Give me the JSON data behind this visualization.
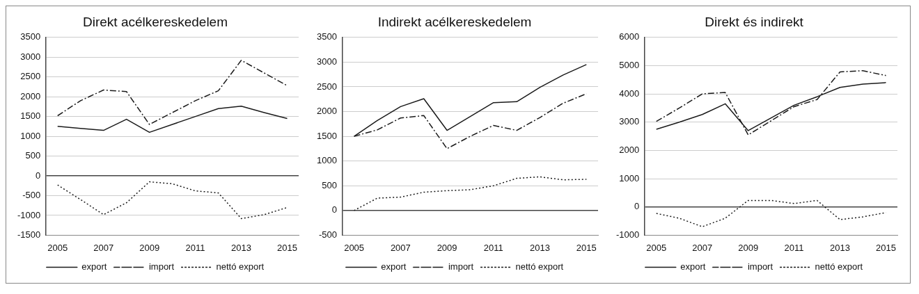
{
  "chart_data": [
    {
      "type": "line",
      "title": "Direkt acélkereskedelem",
      "categories": [
        "2005",
        null,
        "2007",
        null,
        "2009",
        null,
        "2011",
        null,
        "2013",
        null,
        "2015"
      ],
      "ylim": [
        -1500,
        3500
      ],
      "yticks": [
        -1500,
        -1000,
        -500,
        0,
        500,
        1000,
        1500,
        2000,
        2500,
        3000,
        3500
      ],
      "grid": "y",
      "legend": "bottom",
      "marker": "none",
      "series": [
        {
          "name": "export",
          "color": "#1a1a1a",
          "line_style": "solid",
          "values": [
            1250,
            1200,
            1150,
            1430,
            1100,
            1300,
            1500,
            1700,
            1760,
            1600,
            1450
          ]
        },
        {
          "name": "import",
          "color": "#1a1a1a",
          "line_style": "dashdot",
          "values": [
            1520,
            1900,
            2170,
            2130,
            1300,
            1600,
            1900,
            2150,
            2920,
            2600,
            2280
          ]
        },
        {
          "name": "nettó export",
          "color": "#1a1a1a",
          "line_style": "dotted",
          "values": [
            -230,
            -600,
            -980,
            -680,
            -150,
            -200,
            -380,
            -430,
            -1080,
            -980,
            -800
          ]
        }
      ]
    },
    {
      "type": "line",
      "title": "Indirekt acélkereskedelem",
      "categories": [
        "2005",
        null,
        "2007",
        null,
        "2009",
        null,
        "2011",
        null,
        "2013",
        null,
        "2015"
      ],
      "ylim": [
        -500,
        3500
      ],
      "yticks": [
        -500,
        0,
        500,
        1000,
        1500,
        2000,
        2500,
        3000,
        3500
      ],
      "grid": "y",
      "legend": "bottom",
      "marker": "none",
      "series": [
        {
          "name": "export",
          "color": "#1a1a1a",
          "line_style": "solid",
          "values": [
            1500,
            1820,
            2100,
            2260,
            1620,
            1900,
            2180,
            2200,
            2490,
            2740,
            2950
          ]
        },
        {
          "name": "import",
          "color": "#1a1a1a",
          "line_style": "dashdot",
          "values": [
            1500,
            1630,
            1870,
            1920,
            1250,
            1500,
            1720,
            1620,
            1880,
            2170,
            2360
          ]
        },
        {
          "name": "nettó export",
          "color": "#1a1a1a",
          "line_style": "dotted",
          "values": [
            0,
            250,
            270,
            370,
            400,
            420,
            500,
            650,
            680,
            620,
            630
          ]
        }
      ]
    },
    {
      "type": "line",
      "title": "Direkt és indirekt",
      "categories": [
        "2005",
        null,
        "2007",
        null,
        "2009",
        null,
        "2011",
        null,
        "2013",
        null,
        "2015"
      ],
      "ylim": [
        -1000,
        6000
      ],
      "yticks": [
        -1000,
        0,
        1000,
        2000,
        3000,
        4000,
        5000,
        6000
      ],
      "grid": "y",
      "legend": "bottom",
      "marker": "none",
      "series": [
        {
          "name": "export",
          "color": "#1a1a1a",
          "line_style": "solid",
          "values": [
            2750,
            3000,
            3270,
            3650,
            2700,
            3150,
            3600,
            3900,
            4230,
            4350,
            4400
          ]
        },
        {
          "name": "import",
          "color": "#1a1a1a",
          "line_style": "dashdot",
          "values": [
            3030,
            3500,
            4000,
            4050,
            2550,
            3050,
            3550,
            3800,
            4780,
            4820,
            4650
          ]
        },
        {
          "name": "nettó export",
          "color": "#1a1a1a",
          "line_style": "dotted",
          "values": [
            -230,
            -400,
            -700,
            -400,
            230,
            230,
            120,
            230,
            -450,
            -350,
            -200
          ]
        }
      ]
    }
  ]
}
